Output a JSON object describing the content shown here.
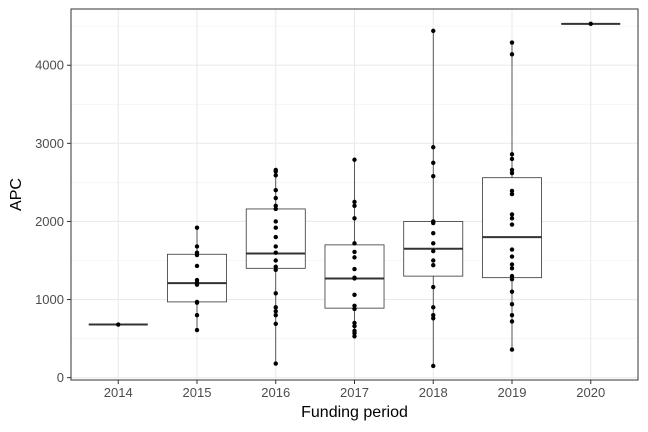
{
  "chart_data": {
    "type": "box",
    "xlabel": "Funding period",
    "ylabel": "APC",
    "categories": [
      "2014",
      "2015",
      "2016",
      "2017",
      "2018",
      "2019",
      "2020"
    ],
    "ylim": [
      -30,
      4720
    ],
    "y_ticks": [
      0,
      1000,
      2000,
      3000,
      4000
    ],
    "y_tick_labels": [
      "0",
      "1000",
      "2000",
      "3000",
      "4000"
    ],
    "grid": true,
    "boxes": [
      {
        "category": "2014",
        "min": 680,
        "q1": 680,
        "median": 680,
        "q3": 680,
        "max": 680
      },
      {
        "category": "2015",
        "min": 610,
        "q1": 970,
        "median": 1210,
        "q3": 1580,
        "max": 1920
      },
      {
        "category": "2016",
        "min": 180,
        "q1": 1400,
        "median": 1590,
        "q3": 2160,
        "max": 2660
      },
      {
        "category": "2017",
        "min": 530,
        "q1": 890,
        "median": 1270,
        "q3": 1700,
        "max": 2790
      },
      {
        "category": "2018",
        "min": 150,
        "q1": 1300,
        "median": 1650,
        "q3": 2000,
        "max": 4440
      },
      {
        "category": "2019",
        "min": 360,
        "q1": 1280,
        "median": 1800,
        "q3": 2560,
        "max": 4290
      },
      {
        "category": "2020",
        "min": 4530,
        "q1": 4530,
        "median": 4530,
        "q3": 4530,
        "max": 4530
      }
    ],
    "points": [
      {
        "category": "2014",
        "values": [
          680
        ]
      },
      {
        "category": "2015",
        "values": [
          610,
          800,
          960,
          970,
          1190,
          1220,
          1250,
          1430,
          1570,
          1600,
          1680,
          1920
        ]
      },
      {
        "category": "2016",
        "values": [
          180,
          690,
          800,
          850,
          900,
          1080,
          1380,
          1420,
          1500,
          1600,
          1680,
          1800,
          1920,
          2000,
          2160,
          2200,
          2300,
          2400,
          2590,
          2640,
          2660
        ]
      },
      {
        "category": "2017",
        "values": [
          530,
          570,
          600,
          660,
          700,
          880,
          920,
          1060,
          1270,
          1280,
          1390,
          1540,
          1610,
          1720,
          2040,
          2200,
          2250,
          2790
        ]
      },
      {
        "category": "2018",
        "values": [
          150,
          760,
          800,
          900,
          1160,
          1440,
          1500,
          1620,
          1720,
          1850,
          1980,
          2000,
          2580,
          2750,
          2950,
          4440
        ]
      },
      {
        "category": "2019",
        "values": [
          360,
          720,
          800,
          940,
          1100,
          1260,
          1300,
          1400,
          1450,
          1550,
          1640,
          1960,
          2040,
          2090,
          2350,
          2390,
          2620,
          2660,
          2800,
          2860,
          4140,
          4290
        ]
      },
      {
        "category": "2020",
        "values": [
          4530
        ]
      }
    ]
  }
}
